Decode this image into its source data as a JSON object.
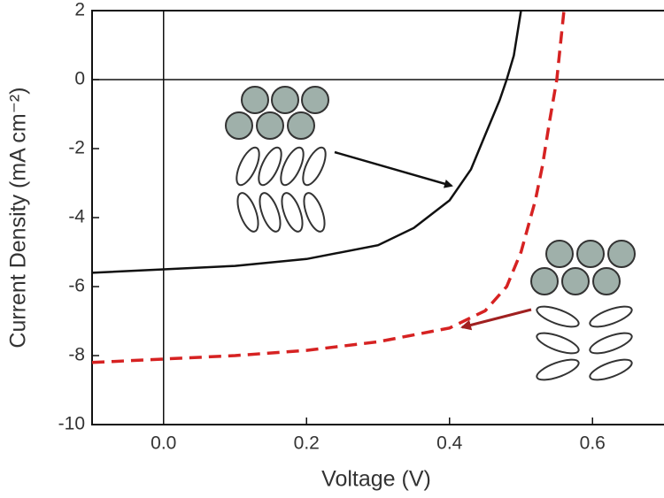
{
  "chart_data": {
    "type": "line",
    "x_label": "Voltage (V)",
    "y_label": "Current Density (mA cm⁻²)",
    "xlim": [
      -0.1,
      0.7
    ],
    "xticks": [
      {
        "value": 0,
        "label": "0.0"
      },
      0.2,
      0.4,
      0.6
    ],
    "ylim": [
      -10,
      2
    ],
    "yticks": [
      2,
      0,
      -2,
      -4,
      -6,
      -8,
      -10
    ],
    "zero_lines": true,
    "series": [
      {
        "color": "#111111",
        "dash": false,
        "x": [
          -0.1,
          0,
          0.1,
          0.2,
          0.3,
          0.35,
          0.4,
          0.43,
          0.45,
          0.47,
          0.48,
          0.49,
          0.5
        ],
        "values": [
          -5.6,
          -5.5,
          -5.4,
          -5.2,
          -4.8,
          -4.3,
          -3.5,
          -2.6,
          -1.6,
          -0.6,
          0,
          0.7,
          2
        ]
      },
      {
        "color": "#d62222",
        "dash": true,
        "x": [
          -0.1,
          0,
          0.1,
          0.2,
          0.3,
          0.4,
          0.45,
          0.48,
          0.5,
          0.52,
          0.53,
          0.54,
          0.55,
          0.56
        ],
        "values": [
          -8.2,
          -8.1,
          -8.0,
          -7.85,
          -7.6,
          -7.2,
          -6.7,
          -6.0,
          -5.0,
          -3.5,
          -2.5,
          -1.2,
          0,
          2
        ]
      }
    ]
  }
}
